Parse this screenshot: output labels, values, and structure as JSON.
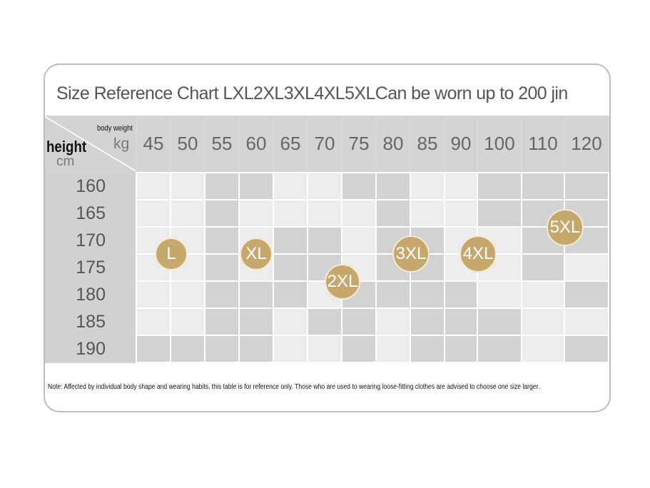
{
  "title": "Size Reference Chart LXL2XL3XL4XL5XLCan be worn up to 200 jin",
  "table": {
    "corner": {
      "weight_label": "body weight",
      "weight_unit": "kg",
      "height_label": "height",
      "height_unit": "cm"
    },
    "weights": [
      "45",
      "50",
      "55",
      "60",
      "65",
      "70",
      "75",
      "80",
      "85",
      "90",
      "100",
      "110",
      "120"
    ],
    "heights": [
      "160",
      "165",
      "170",
      "175",
      "180",
      "185",
      "190"
    ]
  },
  "sizes": [
    "L",
    "XL",
    "2XL",
    "3XL",
    "4XL",
    "5XL"
  ],
  "note": "Note: Affected by individual body shape and wearing habits, this table is for reference only. Those who are used to wearing loose-fitting clothes are advised to choose one size larger."
}
